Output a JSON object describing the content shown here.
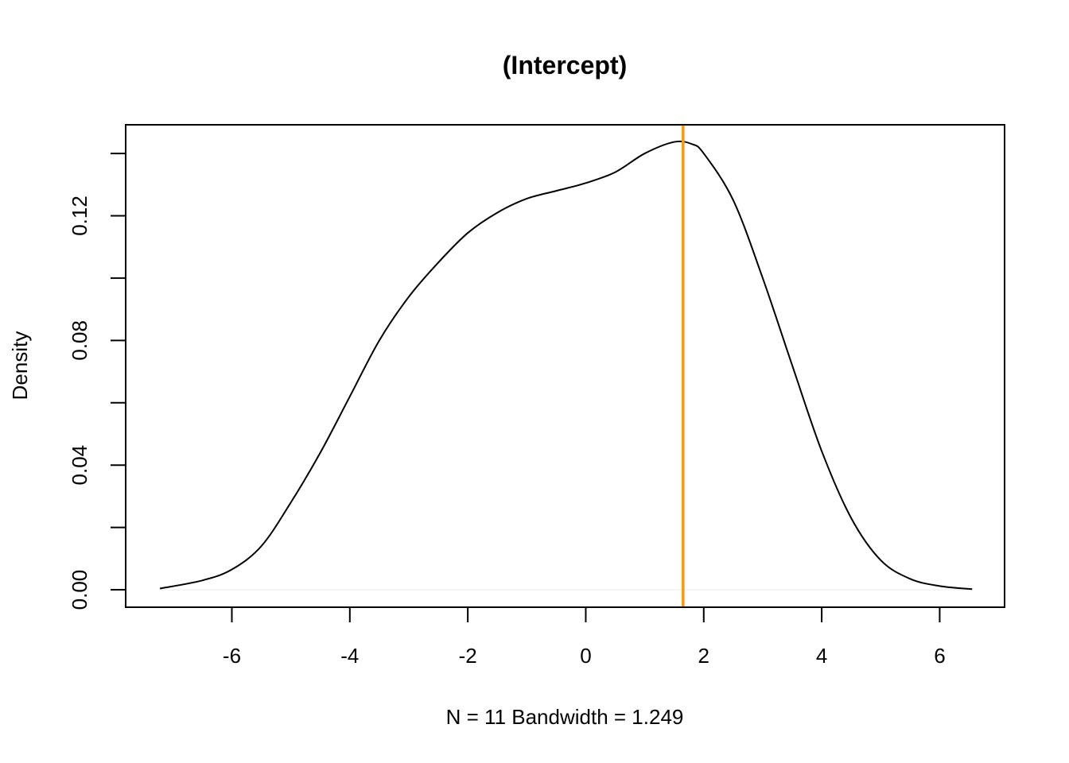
{
  "chart_data": {
    "type": "line",
    "title": "(Intercept)",
    "xlabel": "N = 11   Bandwidth = 1.249",
    "ylabel": "Density",
    "xlim": [
      -7.8,
      7.1
    ],
    "ylim": [
      -0.0056,
      0.1492
    ],
    "x_ticks": [
      -6,
      -4,
      -2,
      0,
      2,
      4,
      6
    ],
    "x_tick_labels": [
      "-6",
      "-4",
      "-2",
      "0",
      "2",
      "4",
      "6"
    ],
    "y_ticks": [
      0,
      0.02,
      0.04,
      0.06,
      0.08,
      0.1,
      0.12,
      0.14
    ],
    "y_tick_labels": [
      "0.00",
      "",
      "0.04",
      "",
      "0.08",
      "",
      "0.12",
      ""
    ],
    "grid": false,
    "legend": "none",
    "zero_line": 0,
    "zero_line_color": "#f2f2f2",
    "series": [
      {
        "color": "#000000",
        "x": [
          -7.22,
          -6.5,
          -6.0,
          -5.5,
          -5.0,
          -4.5,
          -4.0,
          -3.5,
          -3.0,
          -2.5,
          -2.0,
          -1.5,
          -1.0,
          -0.5,
          0.0,
          0.5,
          1.0,
          1.5,
          1.8,
          2.0,
          2.5,
          3.0,
          3.5,
          4.0,
          4.5,
          5.0,
          5.5,
          6.0,
          6.55
        ],
        "y": [
          0.0004,
          0.003,
          0.0065,
          0.014,
          0.028,
          0.044,
          0.062,
          0.08,
          0.094,
          0.105,
          0.1145,
          0.121,
          0.1255,
          0.128,
          0.1305,
          0.134,
          0.14,
          0.1437,
          0.143,
          0.14,
          0.125,
          0.1,
          0.072,
          0.0445,
          0.023,
          0.0095,
          0.0035,
          0.0012,
          0.0002
        ]
      }
    ],
    "vline": {
      "x": 1.65,
      "color": "#ff9900"
    }
  }
}
